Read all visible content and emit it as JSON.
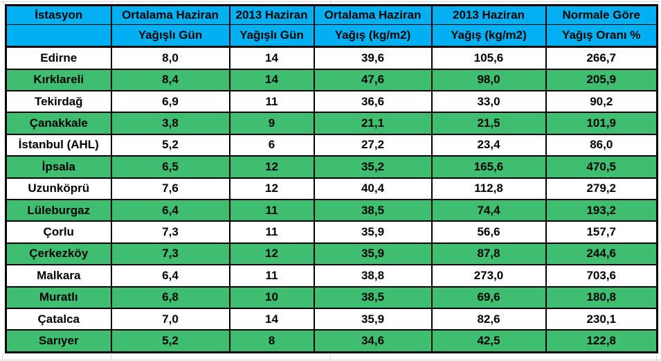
{
  "colors": {
    "header_bg": "#00b0f0",
    "row_highlight": "#3ebe6e",
    "row_default": "#ffffff",
    "border": "#000000",
    "text": "#000000",
    "gridline": "#c9cdd3"
  },
  "chart_data": {
    "type": "table",
    "header_row1": [
      "İstasyon",
      "Ortalama Haziran",
      "2013 Haziran",
      "Ortalama Haziran",
      "2013 Haziran",
      "Normale Göre"
    ],
    "header_row2": [
      "",
      "Yağışlı Gün",
      "Yağışlı Gün",
      "Yağış (kg/m2)",
      "Yağış (kg/m2)",
      "Yağış Oranı %"
    ],
    "rows": [
      {
        "station": "Edirne",
        "values": [
          "8,0",
          "14",
          "39,6",
          "105,6",
          "266,7"
        ],
        "highlight": false
      },
      {
        "station": "Kırklareli",
        "values": [
          "8,4",
          "14",
          "47,6",
          "98,0",
          "205,9"
        ],
        "highlight": true
      },
      {
        "station": "Tekirdağ",
        "values": [
          "6,9",
          "11",
          "36,6",
          "33,0",
          "90,2"
        ],
        "highlight": false
      },
      {
        "station": "Çanakkale",
        "values": [
          "3,8",
          "9",
          "21,1",
          "21,5",
          "101,9"
        ],
        "highlight": true
      },
      {
        "station": "İstanbul (AHL)",
        "values": [
          "5,2",
          "6",
          "27,2",
          "23,4",
          "86,0"
        ],
        "highlight": false
      },
      {
        "station": "İpsala",
        "values": [
          "6,5",
          "12",
          "35,2",
          "165,6",
          "470,5"
        ],
        "highlight": true
      },
      {
        "station": "Uzunköprü",
        "values": [
          "7,6",
          "12",
          "40,4",
          "112,8",
          "279,2"
        ],
        "highlight": false
      },
      {
        "station": "Lüleburgaz",
        "values": [
          "6,4",
          "11",
          "38,5",
          "74,4",
          "193,2"
        ],
        "highlight": true
      },
      {
        "station": "Çorlu",
        "values": [
          "7,3",
          "11",
          "35,9",
          "56,6",
          "157,7"
        ],
        "highlight": false
      },
      {
        "station": "Çerkezköy",
        "values": [
          "7,3",
          "12",
          "35,9",
          "87,8",
          "244,6"
        ],
        "highlight": true
      },
      {
        "station": "Malkara",
        "values": [
          "6,4",
          "11",
          "38,8",
          "273,0",
          "703,6"
        ],
        "highlight": false
      },
      {
        "station": "Muratlı",
        "values": [
          "6,8",
          "10",
          "38,5",
          "69,6",
          "180,8"
        ],
        "highlight": true
      },
      {
        "station": "Çatalca",
        "values": [
          "7,0",
          "14",
          "35,9",
          "82,6",
          "230,1"
        ],
        "highlight": false
      },
      {
        "station": "Sarıyer",
        "values": [
          "5,2",
          "8",
          "34,6",
          "42,5",
          "122,8"
        ],
        "highlight": true
      }
    ]
  }
}
